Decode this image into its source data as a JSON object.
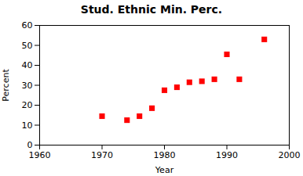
{
  "chart_data": {
    "type": "scatter",
    "title": "Stud. Ethnic Min. Perc.",
    "xlabel": "Year",
    "ylabel": "Percent",
    "x": [
      1970,
      1974,
      1976,
      1978,
      1980,
      1982,
      1984,
      1986,
      1988,
      1990,
      1992,
      1996
    ],
    "values": [
      14.5,
      12.5,
      14.5,
      18.5,
      27.5,
      29,
      31.5,
      32,
      33,
      45.5,
      33,
      53
    ],
    "color": "red",
    "marker": "square",
    "xlim": [
      1960,
      2000
    ],
    "ylim": [
      0,
      60
    ],
    "xticks": [
      1960,
      1970,
      1980,
      1990,
      2000
    ],
    "yticks": [
      0,
      10,
      20,
      30,
      40,
      50,
      60
    ],
    "grid": false
  }
}
